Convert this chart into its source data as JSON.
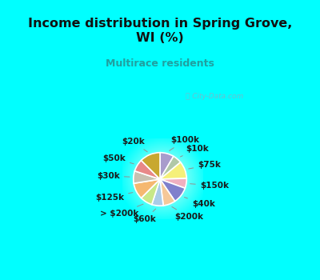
{
  "title": "Income distribution in Spring Grove,\nWI (%)",
  "subtitle": "Multirace residents",
  "labels": [
    "$100k",
    "$10k",
    "$75k",
    "$150k",
    "$40k",
    "$200k",
    "$60k",
    "> $200k",
    "$125k",
    "$30k",
    "$50k",
    "$20k"
  ],
  "values": [
    8.5,
    5.5,
    10.5,
    6.0,
    10.0,
    7.5,
    7.0,
    7.5,
    10.0,
    7.5,
    7.5,
    12.5
  ],
  "colors": [
    "#a89ccc",
    "#b0c8a8",
    "#f5f07a",
    "#f0b0c0",
    "#8080cc",
    "#f5c898",
    "#aacce8",
    "#c8e888",
    "#f5b870",
    "#c8c0b0",
    "#e88888",
    "#c8a830"
  ],
  "bg_cyan": "#00ffff",
  "title_color": "#111111",
  "subtitle_color": "#20a0a0",
  "label_color": "#1a1a1a",
  "watermark": "ⓘ City-Data.com",
  "title_fontsize": 11.5,
  "subtitle_fontsize": 9,
  "label_fontsize": 7.5
}
